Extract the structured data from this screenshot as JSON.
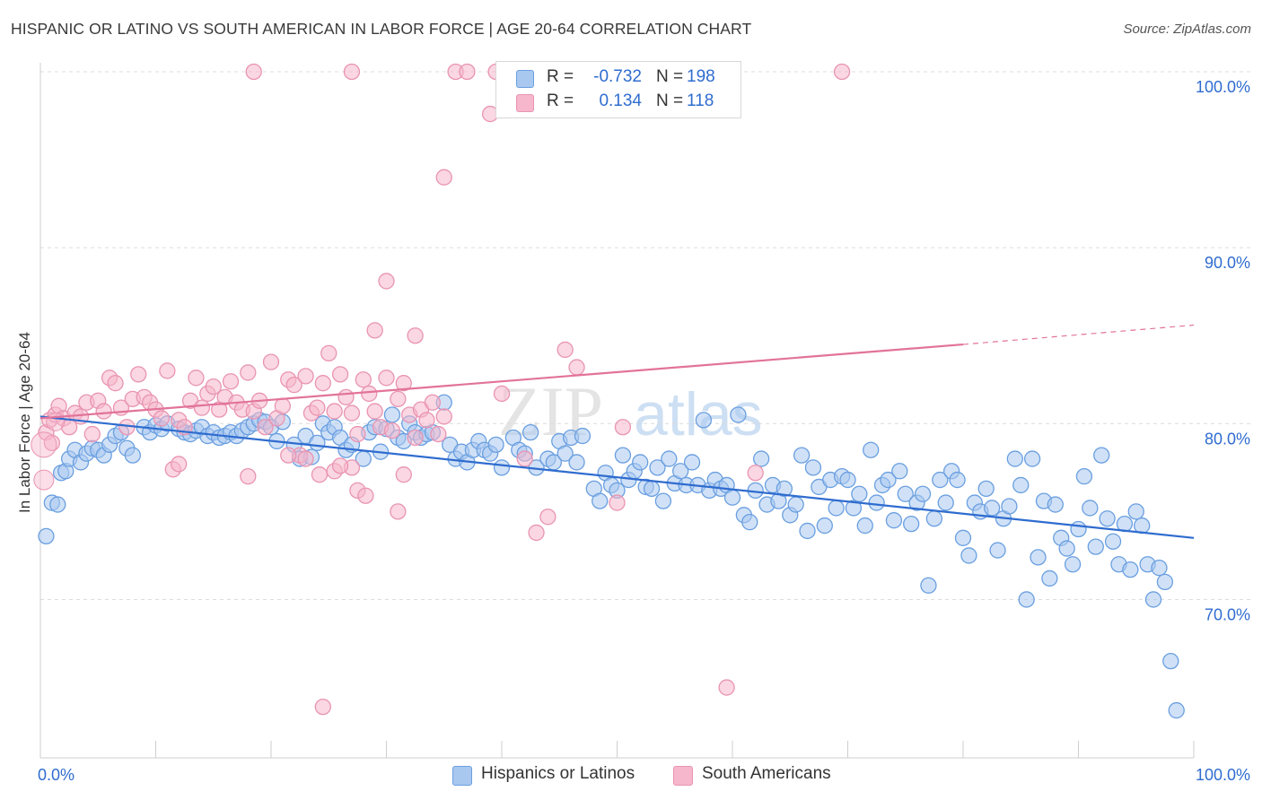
{
  "header": {
    "title": "HISPANIC OR LATINO VS SOUTH AMERICAN IN LABOR FORCE | AGE 20-64 CORRELATION CHART",
    "source": "Source: ZipAtlas.com"
  },
  "watermark": {
    "part1": "ZIP",
    "part2": "atlas"
  },
  "legend": {
    "rows": [
      {
        "r_label": "R =",
        "r_value": "-0.732",
        "n_label": "N =",
        "n_value": "198",
        "color": "#a9c8f0"
      },
      {
        "r_label": "R =",
        "r_value": "0.134",
        "n_label": "N =",
        "n_value": "118",
        "color": "#f6b6cb"
      }
    ]
  },
  "chart_data": {
    "type": "scatter",
    "title": "HISPANIC OR LATINO VS SOUTH AMERICAN IN LABOR FORCE | AGE 20-64 CORRELATION CHART",
    "ylabel": "In Labor Force | Age 20-64",
    "xlabel": "",
    "xlim": [
      0,
      100
    ],
    "ylim": [
      61,
      100
    ],
    "x_tick_labels": [
      "0.0%",
      "100.0%"
    ],
    "y_ticks": [
      70,
      80,
      90,
      100
    ],
    "y_tick_labels": [
      "70.0%",
      "80.0%",
      "90.0%",
      "100.0%"
    ],
    "grid": true,
    "legend_position": "top-center",
    "series": [
      {
        "name": "Hispanics or Latinos",
        "color": "#6a9fe0",
        "fill": "#a9c8f0",
        "line_color": "#2f6ccf",
        "trend": {
          "x": [
            0,
            100
          ],
          "y": [
            80.4,
            73.5
          ],
          "dashed_from": null
        },
        "points": [
          [
            0.5,
            73.6
          ],
          [
            1,
            75.5
          ],
          [
            1.5,
            75.4
          ],
          [
            1.8,
            77.2
          ],
          [
            2.2,
            77.3
          ],
          [
            2.5,
            78
          ],
          [
            3,
            78.5
          ],
          [
            3.5,
            77.8
          ],
          [
            4,
            78.3
          ],
          [
            4.5,
            78.6
          ],
          [
            5,
            78.5
          ],
          [
            5.5,
            78.2
          ],
          [
            6,
            78.8
          ],
          [
            6.5,
            79.3
          ],
          [
            7,
            79.5
          ],
          [
            7.5,
            78.6
          ],
          [
            8,
            78.2
          ],
          [
            9,
            79.8
          ],
          [
            9.5,
            79.5
          ],
          [
            10,
            79.9
          ],
          [
            10.5,
            79.7
          ],
          [
            11,
            80
          ],
          [
            12,
            79.7
          ],
          [
            12.5,
            79.5
          ],
          [
            13,
            79.4
          ],
          [
            13.5,
            79.6
          ],
          [
            14,
            79.8
          ],
          [
            14.5,
            79.3
          ],
          [
            15,
            79.5
          ],
          [
            15.5,
            79.2
          ],
          [
            16,
            79.3
          ],
          [
            16.5,
            79.5
          ],
          [
            17,
            79.3
          ],
          [
            17.5,
            79.6
          ],
          [
            18,
            79.8
          ],
          [
            18.5,
            80
          ],
          [
            19,
            80.2
          ],
          [
            19.5,
            80.1
          ],
          [
            20,
            79.8
          ],
          [
            20.5,
            79
          ],
          [
            21,
            80.1
          ],
          [
            22,
            78.8
          ],
          [
            22.5,
            78
          ],
          [
            23,
            79.3
          ],
          [
            23.5,
            78.1
          ],
          [
            24,
            78.9
          ],
          [
            24.5,
            80
          ],
          [
            25,
            79.5
          ],
          [
            25.5,
            79.8
          ],
          [
            26,
            79.2
          ],
          [
            26.5,
            78.5
          ],
          [
            27,
            78.8
          ],
          [
            28,
            78
          ],
          [
            28.5,
            79.5
          ],
          [
            29,
            79.8
          ],
          [
            29.5,
            78.4
          ],
          [
            30,
            79.7
          ],
          [
            30.5,
            80.5
          ],
          [
            31,
            79.2
          ],
          [
            31.5,
            79
          ],
          [
            32,
            80
          ],
          [
            32.5,
            79.5
          ],
          [
            33,
            79.2
          ],
          [
            33.5,
            79.4
          ],
          [
            34,
            79.5
          ],
          [
            35,
            81.2
          ],
          [
            35.5,
            78.8
          ],
          [
            36,
            78
          ],
          [
            36.5,
            78.4
          ],
          [
            37,
            77.8
          ],
          [
            37.5,
            78.5
          ],
          [
            38,
            79
          ],
          [
            38.5,
            78.5
          ],
          [
            39,
            78.3
          ],
          [
            39.5,
            78.8
          ],
          [
            40,
            77.5
          ],
          [
            41,
            79.2
          ],
          [
            41.5,
            78.5
          ],
          [
            42,
            78.3
          ],
          [
            42.5,
            79.5
          ],
          [
            43,
            77.5
          ],
          [
            44,
            78
          ],
          [
            44.5,
            77.8
          ],
          [
            45,
            79
          ],
          [
            45.5,
            78.3
          ],
          [
            46,
            79.2
          ],
          [
            46.5,
            77.8
          ],
          [
            47,
            79.3
          ],
          [
            48,
            76.3
          ],
          [
            48.5,
            75.6
          ],
          [
            49,
            77.2
          ],
          [
            49.5,
            76.5
          ],
          [
            50,
            76.2
          ],
          [
            50.5,
            78.2
          ],
          [
            51,
            76.8
          ],
          [
            51.5,
            77.3
          ],
          [
            52,
            77.8
          ],
          [
            52.5,
            76.4
          ],
          [
            53,
            76.3
          ],
          [
            53.5,
            77.5
          ],
          [
            54,
            75.6
          ],
          [
            54.5,
            78
          ],
          [
            55,
            76.6
          ],
          [
            55.5,
            77.3
          ],
          [
            56,
            76.5
          ],
          [
            56.5,
            77.8
          ],
          [
            57,
            76.5
          ],
          [
            57.5,
            80.2
          ],
          [
            58,
            76.2
          ],
          [
            58.5,
            76.8
          ],
          [
            59,
            76.3
          ],
          [
            59.5,
            76.5
          ],
          [
            60,
            75.8
          ],
          [
            60.5,
            80.5
          ],
          [
            61,
            74.8
          ],
          [
            61.5,
            74.4
          ],
          [
            62,
            76.2
          ],
          [
            62.5,
            78
          ],
          [
            63,
            75.4
          ],
          [
            63.5,
            76.5
          ],
          [
            64,
            75.6
          ],
          [
            64.5,
            76.3
          ],
          [
            65,
            74.8
          ],
          [
            65.5,
            75.4
          ],
          [
            66,
            78.2
          ],
          [
            66.5,
            73.9
          ],
          [
            67,
            77.5
          ],
          [
            67.5,
            76.4
          ],
          [
            68,
            74.2
          ],
          [
            68.5,
            76.8
          ],
          [
            69,
            75.2
          ],
          [
            69.5,
            77
          ],
          [
            70,
            76.8
          ],
          [
            70.5,
            75.2
          ],
          [
            71,
            76
          ],
          [
            71.5,
            74.2
          ],
          [
            72,
            78.5
          ],
          [
            72.5,
            75.5
          ],
          [
            73,
            76.5
          ],
          [
            73.5,
            76.8
          ],
          [
            74,
            74.5
          ],
          [
            74.5,
            77.3
          ],
          [
            75,
            76
          ],
          [
            75.5,
            74.3
          ],
          [
            76,
            75.5
          ],
          [
            76.5,
            76
          ],
          [
            77,
            70.8
          ],
          [
            77.5,
            74.6
          ],
          [
            78,
            76.8
          ],
          [
            78.5,
            75.5
          ],
          [
            79,
            77.3
          ],
          [
            79.5,
            76.8
          ],
          [
            80,
            73.5
          ],
          [
            80.5,
            72.5
          ],
          [
            81,
            75.5
          ],
          [
            81.5,
            75
          ],
          [
            82,
            76.3
          ],
          [
            82.5,
            75.2
          ],
          [
            83,
            72.8
          ],
          [
            83.5,
            74.6
          ],
          [
            84,
            75.3
          ],
          [
            84.5,
            78
          ],
          [
            85,
            76.5
          ],
          [
            85.5,
            70
          ],
          [
            86,
            78
          ],
          [
            86.5,
            72.4
          ],
          [
            87,
            75.6
          ],
          [
            87.5,
            71.2
          ],
          [
            88,
            75.4
          ],
          [
            88.5,
            73.5
          ],
          [
            89,
            72.9
          ],
          [
            89.5,
            72
          ],
          [
            90,
            74
          ],
          [
            90.5,
            77
          ],
          [
            91,
            75.2
          ],
          [
            91.5,
            73
          ],
          [
            92,
            78.2
          ],
          [
            92.5,
            74.6
          ],
          [
            93,
            73.3
          ],
          [
            93.5,
            72
          ],
          [
            94,
            74.3
          ],
          [
            94.5,
            71.7
          ],
          [
            95,
            75
          ],
          [
            95.5,
            74.2
          ],
          [
            96,
            72
          ],
          [
            96.5,
            70
          ],
          [
            97,
            71.8
          ],
          [
            97.5,
            71
          ],
          [
            98,
            66.5
          ],
          [
            98.5,
            63.7
          ]
        ]
      },
      {
        "name": "South Americans",
        "color": "#e994b2",
        "fill": "#f6b6cb",
        "line_color": "#e2739a",
        "trend": {
          "x": [
            0,
            80,
            100
          ],
          "y": [
            80.3,
            84.5,
            85.6
          ],
          "dashed_from": 80
        },
        "points": [
          [
            0.5,
            79.5
          ],
          [
            0.8,
            80.2
          ],
          [
            1,
            78.9
          ],
          [
            1.3,
            80.5
          ],
          [
            1.6,
            81
          ],
          [
            2,
            80.3
          ],
          [
            2.5,
            79.8
          ],
          [
            3,
            80.6
          ],
          [
            3.5,
            80.4
          ],
          [
            4,
            81.2
          ],
          [
            4.5,
            79.4
          ],
          [
            5,
            81.3
          ],
          [
            5.5,
            80.7
          ],
          [
            6,
            82.6
          ],
          [
            6.5,
            82.3
          ],
          [
            7,
            80.9
          ],
          [
            7.5,
            79.8
          ],
          [
            8,
            81.4
          ],
          [
            8.5,
            82.8
          ],
          [
            9,
            81.5
          ],
          [
            9.5,
            81.2
          ],
          [
            10,
            80.8
          ],
          [
            10.5,
            80.3
          ],
          [
            11,
            83
          ],
          [
            11.5,
            77.4
          ],
          [
            12,
            80.2
          ],
          [
            12.5,
            79.8
          ],
          [
            13,
            81.3
          ],
          [
            13.5,
            82.6
          ],
          [
            14,
            80.9
          ],
          [
            14.5,
            81.7
          ],
          [
            15,
            82.1
          ],
          [
            15.5,
            80.8
          ],
          [
            16,
            81.5
          ],
          [
            16.5,
            82.4
          ],
          [
            17,
            81.2
          ],
          [
            17.5,
            80.8
          ],
          [
            18,
            82.9
          ],
          [
            18.5,
            80.7
          ],
          [
            19,
            81.3
          ],
          [
            19.5,
            79.8
          ],
          [
            20,
            83.5
          ],
          [
            20.5,
            80.3
          ],
          [
            21,
            81
          ],
          [
            21.5,
            82.5
          ],
          [
            22,
            82.2
          ],
          [
            22.5,
            78.2
          ],
          [
            23,
            82.7
          ],
          [
            23.5,
            80.6
          ],
          [
            24,
            80.9
          ],
          [
            24.5,
            82.3
          ],
          [
            25,
            84
          ],
          [
            25.5,
            80.7
          ],
          [
            26,
            82.8
          ],
          [
            26.5,
            81.5
          ],
          [
            27,
            80.6
          ],
          [
            27.5,
            79.4
          ],
          [
            28,
            82.5
          ],
          [
            28.5,
            81.7
          ],
          [
            29,
            80.7
          ],
          [
            29.5,
            79.8
          ],
          [
            30,
            82.6
          ],
          [
            30.5,
            79.6
          ],
          [
            31,
            81.4
          ],
          [
            31.5,
            82.3
          ],
          [
            32,
            80.5
          ],
          [
            32.5,
            79.2
          ],
          [
            33,
            80.8
          ],
          [
            33.5,
            80.2
          ],
          [
            34,
            81.2
          ],
          [
            34.5,
            79.4
          ],
          [
            35,
            80.4
          ],
          [
            27.5,
            76.2
          ],
          [
            28.2,
            75.9
          ],
          [
            29,
            85.3
          ],
          [
            30,
            88.1
          ],
          [
            31,
            75
          ],
          [
            32.5,
            85
          ],
          [
            35,
            94
          ],
          [
            36,
            100
          ],
          [
            37,
            100
          ],
          [
            39,
            97.6
          ],
          [
            39.5,
            100
          ],
          [
            40,
            81.7
          ],
          [
            42,
            78
          ],
          [
            43,
            73.8
          ],
          [
            44,
            74.7
          ],
          [
            45.5,
            84.2
          ],
          [
            46.5,
            83.2
          ],
          [
            50,
            75.5
          ],
          [
            50.5,
            79.8
          ],
          [
            59.5,
            65
          ],
          [
            62,
            77.2
          ],
          [
            69.5,
            100
          ],
          [
            24.5,
            63.9
          ],
          [
            24.2,
            77.1
          ],
          [
            25.5,
            77.3
          ],
          [
            27,
            77.5
          ],
          [
            31.5,
            77.1
          ],
          [
            12,
            77.7
          ],
          [
            18,
            77
          ],
          [
            21.5,
            78.2
          ],
          [
            23,
            78
          ],
          [
            26,
            77.6
          ],
          [
            27,
            100
          ],
          [
            18.5,
            100
          ]
        ]
      }
    ]
  },
  "bottom_legend": {
    "items": [
      {
        "label": "Hispanics or Latinos",
        "color": "#a9c8f0"
      },
      {
        "label": "South Americans",
        "color": "#f6b6cb"
      }
    ]
  }
}
